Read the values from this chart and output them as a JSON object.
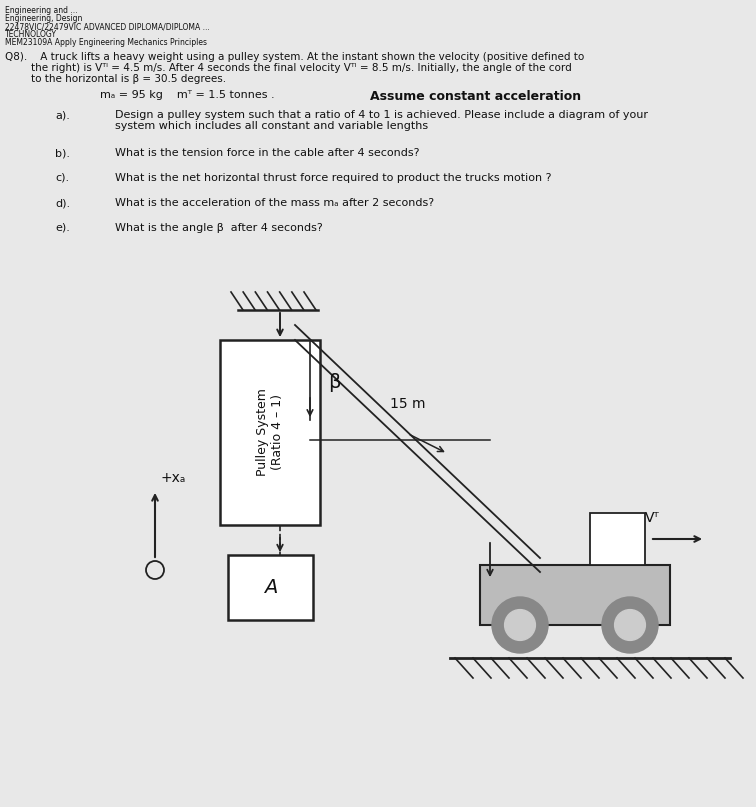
{
  "page_bg": "#d4d4d4",
  "paper_color": "#e8e8e8",
  "text_color": "#111111",
  "header": [
    "Engineering and ...",
    "Engineering, Design",
    "22478VIC/22479VIC ADVANCED DIPLOMA/DIPLOMA ...",
    "TECHNOLOGY",
    "MEM23109A Apply Engineering Mechanics Principles"
  ],
  "q8_line1": "Q8).    A truck lifts a heavy weight using a pulley system. At the instant shown the velocity (positive defined to",
  "q8_line2": "        the right) is Vᵀᴵ = 4.5 m/s. After 4 seconds the final velocity Vᵀᴵ = 8.5 m/s. Initially, the angle of the cord",
  "q8_line3": "        to the horizontal is β = 30.5 degrees.",
  "bold_text": "Assume constant acceleration",
  "mass_text": "mₐ = 95 kg    mᵀ = 1.5 tonnes .",
  "sq_a_label": "a).",
  "sq_a_text1": "Design a pulley system such that a ratio of 4 to 1 is achieved. Please include a diagram of your",
  "sq_a_text2": "system which includes all constant and variable lengths",
  "sq_b_label": "b).",
  "sq_b_text": "What is the tension force in the cable after 4 seconds?",
  "sq_c_label": "c).",
  "sq_c_text": "What is the net horizontal thrust force required to product the trucks motion ?",
  "sq_d_label": "d).",
  "sq_d_text": "What is the acceleration of the mass mₐ after 2 seconds?",
  "sq_e_label": "e).",
  "sq_e_text": "What is the angle β  after 4 seconds?",
  "diag_line_color": "#222222",
  "pulley_box_label": "Pulley System\n(Ratio 4 – 1)",
  "block_label": "A",
  "rope_label": "15 m",
  "beta_label": "β",
  "xA_label": "+xₐ",
  "vT_label": "Vᵀ"
}
